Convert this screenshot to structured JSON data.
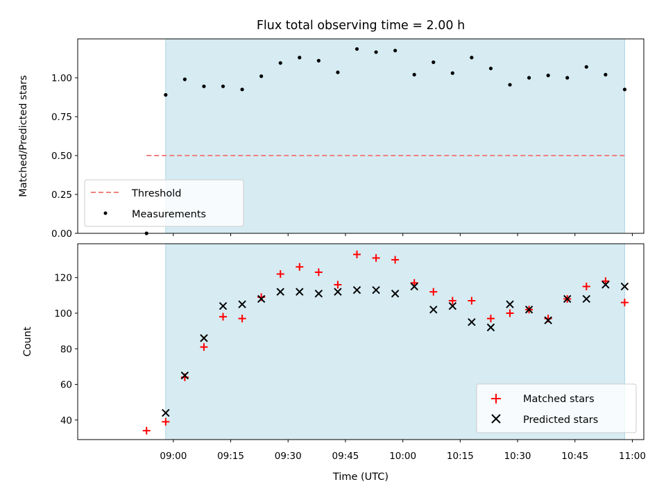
{
  "chart_data": [
    {
      "type": "scatter",
      "title": "Flux total observing time = 2.00 h",
      "xlabel": "",
      "ylabel": "Matched/Predicted stars",
      "ylim": [
        0,
        1.25
      ],
      "y_ticks": [
        "0.00",
        "0.25",
        "0.50",
        "0.75",
        "1.00"
      ],
      "y_tick_values": [
        0,
        0.25,
        0.5,
        0.75,
        1.0
      ],
      "observing_window": [
        "08:58",
        "10:58"
      ],
      "observing_window_color": "#add8e6",
      "legend": {
        "placement": "lower left",
        "entries": [
          "Threshold",
          "Measurements"
        ]
      },
      "threshold": {
        "name": "Threshold",
        "value": 0.5,
        "x_range": [
          "08:53",
          "10:58"
        ],
        "color": "#f08080"
      },
      "series": [
        {
          "name": "Measurements",
          "color": "#000000",
          "x": [
            "08:53",
            "08:58",
            "09:03",
            "09:08",
            "09:13",
            "09:18",
            "09:23",
            "09:28",
            "09:33",
            "09:38",
            "09:43",
            "09:48",
            "09:53",
            "09:58",
            "10:03",
            "10:08",
            "10:13",
            "10:18",
            "10:23",
            "10:28",
            "10:33",
            "10:38",
            "10:43",
            "10:48",
            "10:53",
            "10:58"
          ],
          "values": [
            0.0,
            0.89,
            0.99,
            0.945,
            0.945,
            0.925,
            1.01,
            1.095,
            1.13,
            1.11,
            1.035,
            1.185,
            1.165,
            1.175,
            1.02,
            1.1,
            1.03,
            1.13,
            1.06,
            0.955,
            1.0,
            1.015,
            1.0,
            1.07,
            1.02,
            0.925
          ]
        }
      ]
    },
    {
      "type": "scatter",
      "title": "",
      "xlabel": "Time (UTC)",
      "ylabel": "Count",
      "ylim": [
        29,
        139
      ],
      "y_ticks": [
        "40",
        "60",
        "80",
        "100",
        "120"
      ],
      "y_tick_values": [
        40,
        60,
        80,
        100,
        120
      ],
      "x_ticks": [
        "09:00",
        "09:15",
        "09:30",
        "09:45",
        "10:00",
        "10:15",
        "10:30",
        "10:45",
        "11:00"
      ],
      "observing_window": [
        "08:58",
        "10:58"
      ],
      "observing_window_color": "#add8e6",
      "legend": {
        "placement": "lower right",
        "entries": [
          "Matched stars",
          "Predicted stars"
        ]
      },
      "series": [
        {
          "name": "Matched stars",
          "marker": "+",
          "color": "#ff0000",
          "x": [
            "08:53",
            "08:58",
            "09:03",
            "09:08",
            "09:13",
            "09:18",
            "09:23",
            "09:28",
            "09:33",
            "09:38",
            "09:43",
            "09:48",
            "09:53",
            "09:58",
            "10:03",
            "10:08",
            "10:13",
            "10:18",
            "10:23",
            "10:28",
            "10:33",
            "10:38",
            "10:43",
            "10:48",
            "10:53",
            "10:58"
          ],
          "values": [
            34,
            39,
            64,
            81,
            98,
            97,
            109,
            122,
            126,
            123,
            116,
            133,
            131,
            130,
            117,
            112,
            107,
            107,
            97,
            100,
            102,
            97,
            108,
            115,
            118,
            106
          ]
        },
        {
          "name": "Predicted stars",
          "marker": "x",
          "color": "#000000",
          "x": [
            "08:58",
            "09:03",
            "09:08",
            "09:13",
            "09:18",
            "09:23",
            "09:28",
            "09:33",
            "09:38",
            "09:43",
            "09:48",
            "09:53",
            "09:58",
            "10:03",
            "10:08",
            "10:13",
            "10:18",
            "10:23",
            "10:28",
            "10:33",
            "10:38",
            "10:43",
            "10:48",
            "10:53",
            "10:58"
          ],
          "values": [
            44,
            65,
            86,
            104,
            105,
            108,
            112,
            112,
            111,
            112,
            113,
            113,
            111,
            115,
            102,
            104,
            95,
            92,
            105,
            102,
            96,
            108,
            108,
            116,
            115
          ]
        }
      ]
    }
  ]
}
